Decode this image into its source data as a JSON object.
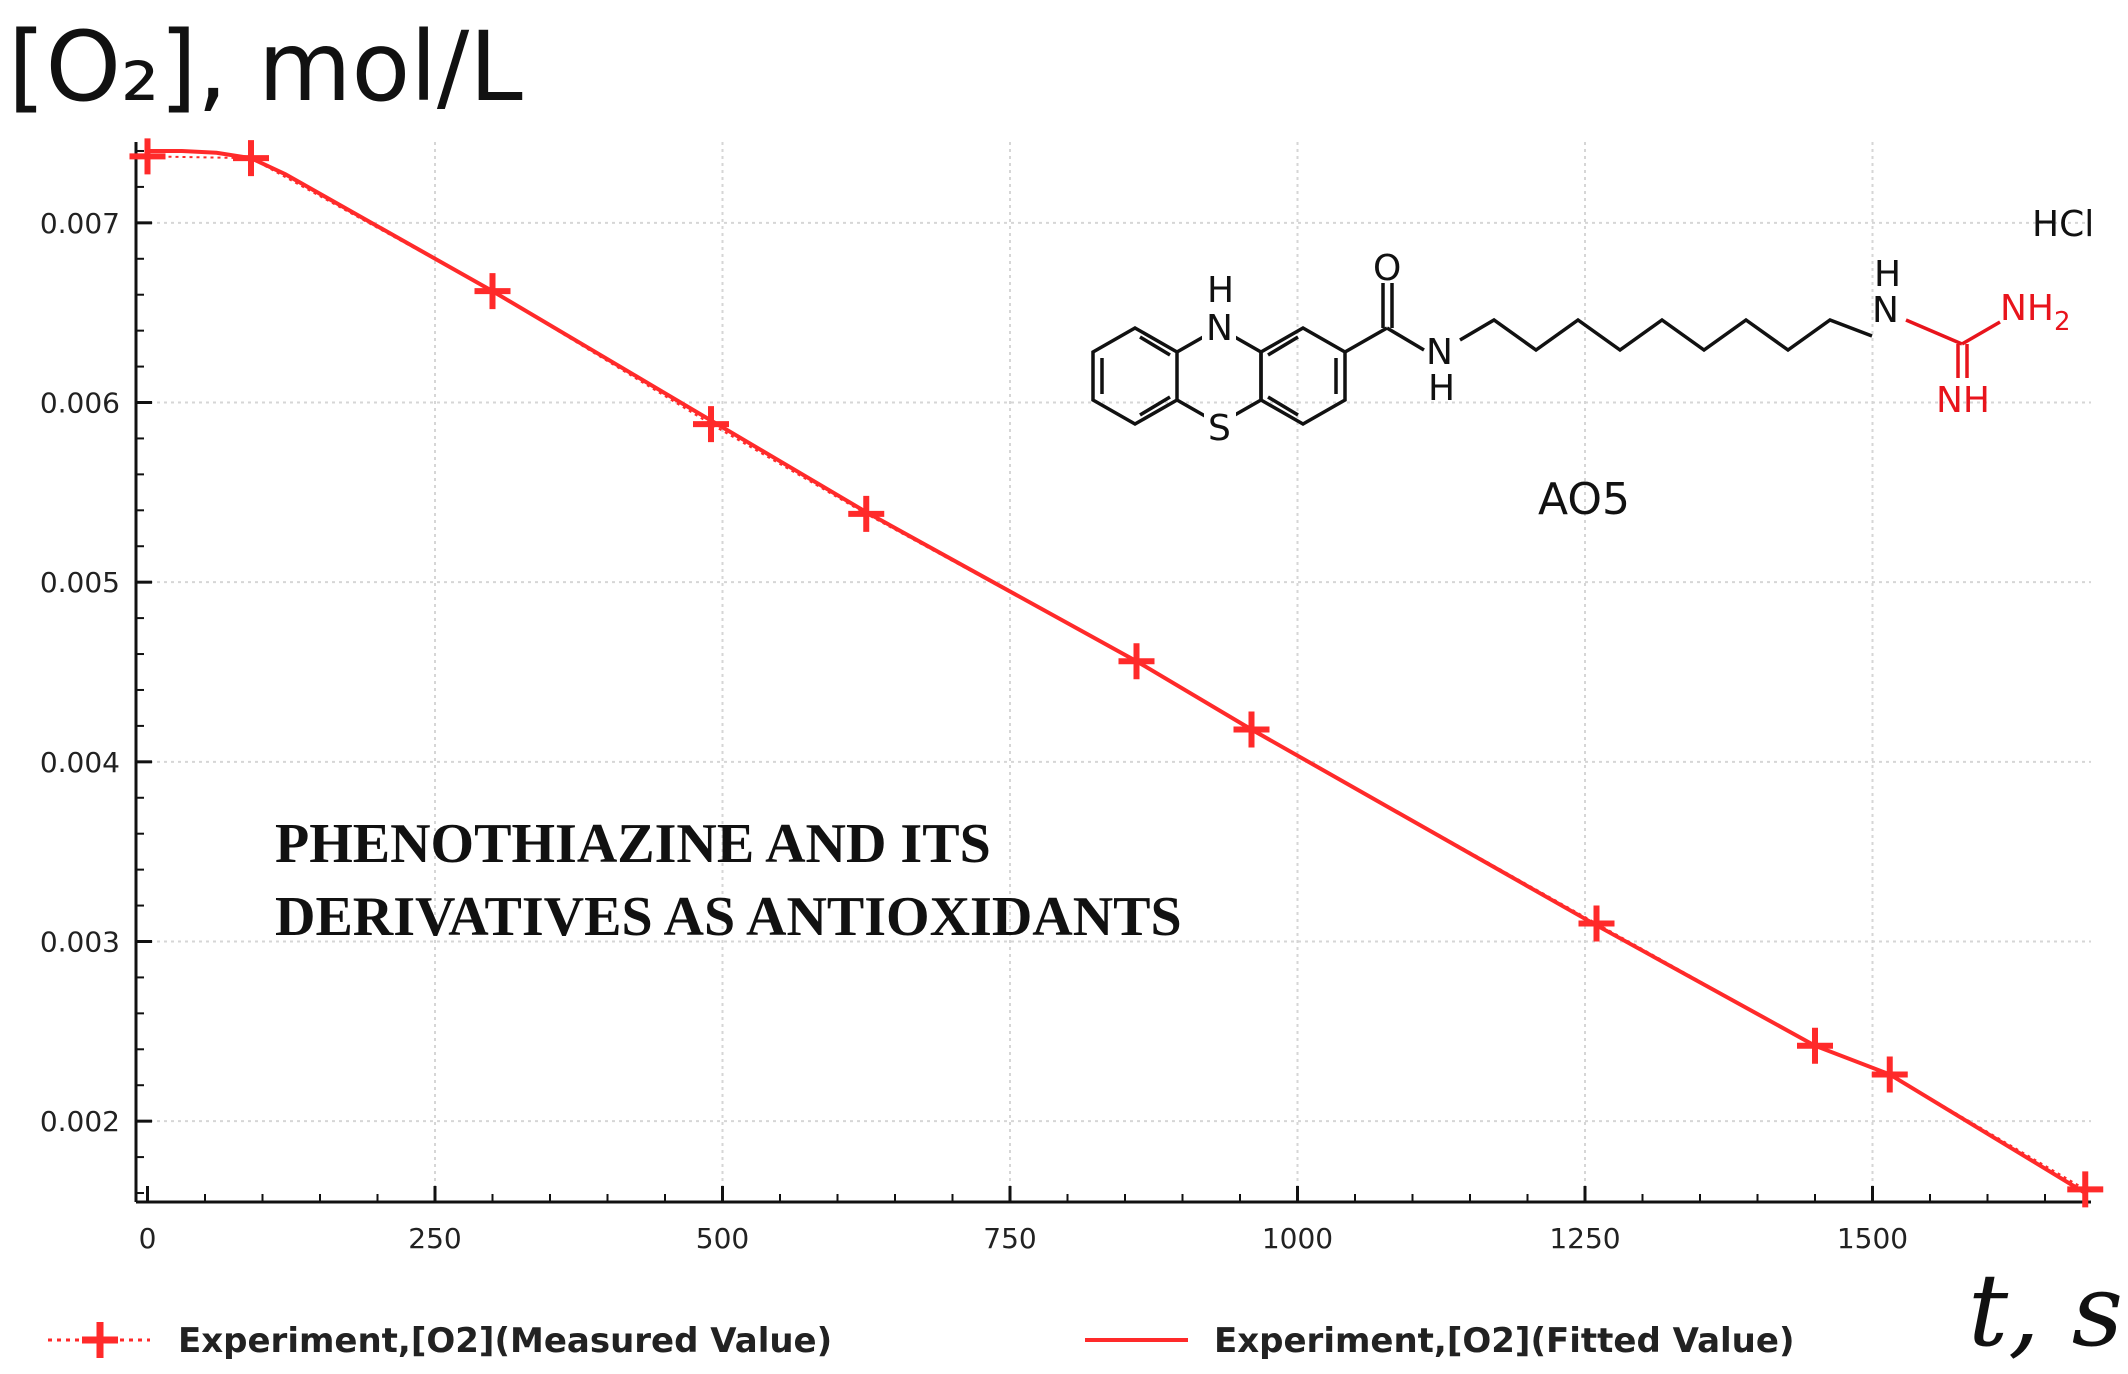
{
  "chart_data": {
    "type": "line",
    "ylabel": "[O₂], mol/L",
    "xlabel": "t, s",
    "xlim": [
      -10,
      1690
    ],
    "ylim": [
      0.00155,
      0.00745
    ],
    "x_ticks": [
      0,
      250,
      500,
      750,
      1000,
      1250,
      1500
    ],
    "y_ticks": [
      0.002,
      0.003,
      0.004,
      0.005,
      0.006,
      0.007
    ],
    "y_tick_labels": [
      "0.002",
      "0.003",
      "0.004",
      "0.005",
      "0.006",
      "0.007"
    ],
    "x_tick_labels": [
      "0",
      "250",
      "500",
      "750",
      "1000",
      "1250",
      "1500"
    ],
    "grid": true,
    "legend_position": "bottom",
    "series": [
      {
        "name": "Experiment,[O2](Measured Value)",
        "kind": "markers",
        "color": "#ff2a2a",
        "x": [
          0,
          90,
          300,
          490,
          625,
          860,
          960,
          1260,
          1450,
          1515,
          1685
        ],
        "y": [
          0.00737,
          0.00736,
          0.00662,
          0.00588,
          0.00538,
          0.00456,
          0.00418,
          0.0031,
          0.00242,
          0.00226,
          0.00162
        ]
      },
      {
        "name": "Experiment,[O2](Fitted Value)",
        "kind": "line",
        "color": "#ff2a2a",
        "x": [
          0,
          30,
          60,
          90,
          120,
          300,
          490,
          625,
          860,
          960,
          1260,
          1450,
          1515,
          1685
        ],
        "y": [
          0.0074,
          0.0074,
          0.00739,
          0.00736,
          0.00727,
          0.00662,
          0.0059,
          0.00539,
          0.00456,
          0.00418,
          0.00309,
          0.00242,
          0.00226,
          0.0016
        ]
      }
    ]
  },
  "annotations": {
    "title_line1": "PHENOTHIAZINE AND ITS",
    "title_line2": "DERIVATIVES AS ANTIOXIDANTS"
  },
  "structure": {
    "name": "AO5",
    "salt": "HCl",
    "labels": {
      "ring_nh": "H",
      "ring_n": "N",
      "ring_s": "S",
      "carbonyl_o": "O",
      "amide_n": "N",
      "amide_h": "H",
      "guan_h": "H",
      "guan_n": "N",
      "guan_nh2": "NH",
      "guan_nh2_sub": "2",
      "guan_nh": "NH"
    }
  }
}
